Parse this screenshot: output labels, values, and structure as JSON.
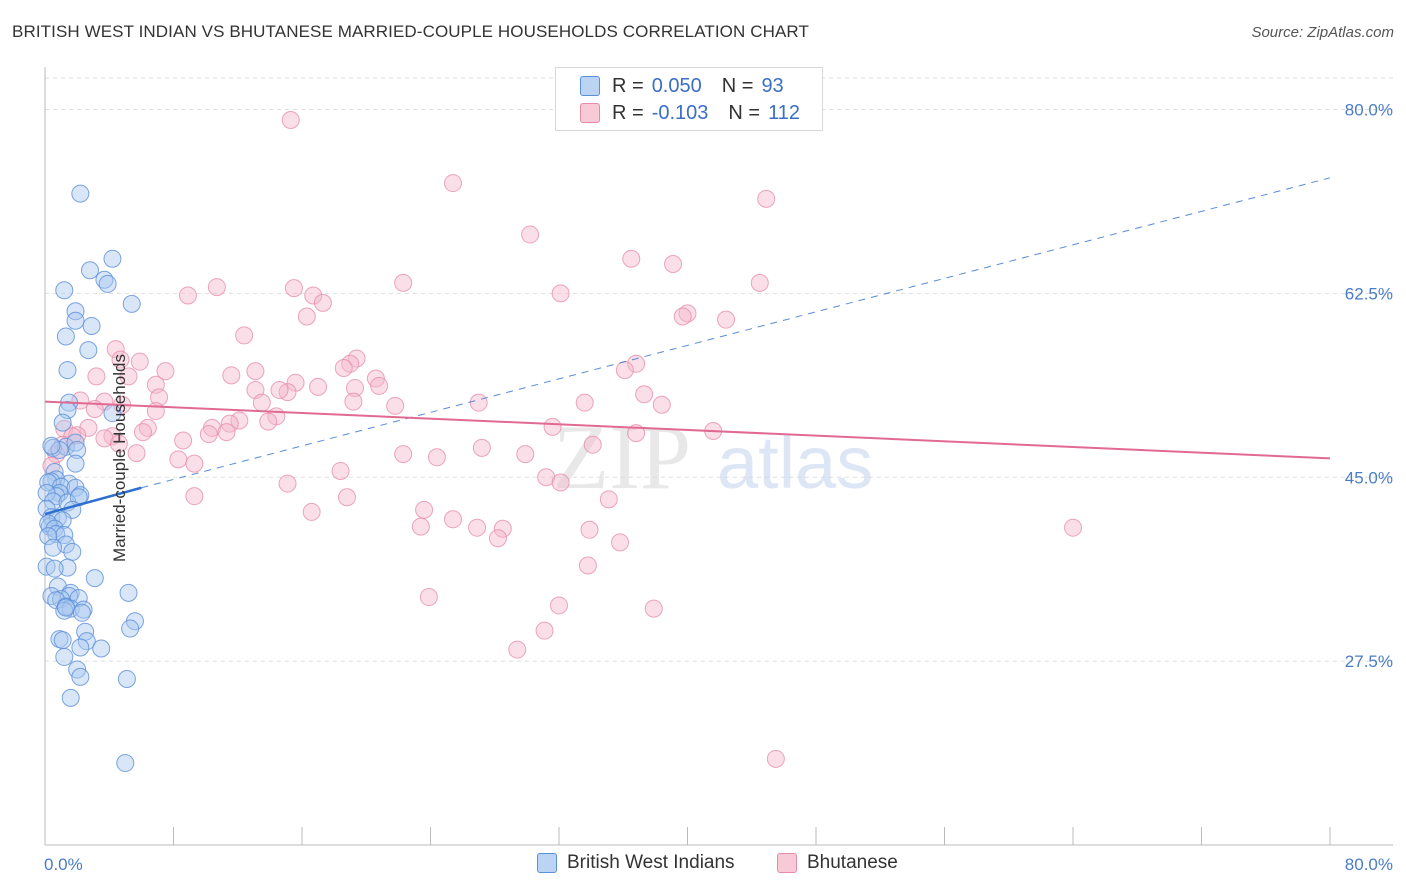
{
  "title": "BRITISH WEST INDIAN VS BHUTANESE MARRIED-COUPLE HOUSEHOLDS CORRELATION CHART",
  "source": "Source: ZipAtlas.com",
  "watermark": {
    "zip": "ZIP",
    "atlas": "atlas"
  },
  "colors": {
    "blue_fill": "#a9c7f0",
    "blue_stroke": "#5b8fd8",
    "blue_line": "#2e6fd0",
    "pink_fill": "#f5b8cb",
    "pink_stroke": "#e68aa6",
    "pink_line": "#e06a93",
    "axis_text": "#4a7cc7",
    "grid": "#dddddd"
  },
  "legend": {
    "rows": [
      {
        "r_label": "R =",
        "r_value": "0.050",
        "n_label": "N =",
        "n_value": "93"
      },
      {
        "r_label": "R =",
        "r_value": "-0.103",
        "n_label": "N =",
        "n_value": "112"
      }
    ]
  },
  "bottom_legend": {
    "series1": "British West Indians",
    "series2": "Bhutanese"
  },
  "chart_data": {
    "type": "scatter",
    "title": "BRITISH WEST INDIAN VS BHUTANESE MARRIED-COUPLE HOUSEHOLDS CORRELATION CHART",
    "xlabel": "",
    "ylabel": "Married-couple Households",
    "xlim": [
      0,
      80
    ],
    "ylim": [
      10,
      83
    ],
    "x_tick_labels": [
      "0.0%",
      "80.0%"
    ],
    "y_ticks": [
      27.5,
      45.0,
      62.5,
      80.0
    ],
    "y_tick_labels": [
      "27.5%",
      "45.0%",
      "62.5%",
      "80.0%"
    ],
    "grid": true,
    "series": [
      {
        "name": "British West Indians",
        "R": 0.05,
        "N": 93,
        "trend": {
          "x1": 0,
          "y1": 41.5,
          "x2": 6,
          "y2": 44.0,
          "dash_x2": 80,
          "dash_y2": 73.5
        },
        "points": [
          [
            2.2,
            72
          ],
          [
            4.2,
            65.8
          ],
          [
            2.8,
            64.7
          ],
          [
            3.7,
            63.8
          ],
          [
            3.9,
            63.4
          ],
          [
            1.2,
            62.8
          ],
          [
            5.4,
            61.5
          ],
          [
            1.9,
            60.8
          ],
          [
            1.9,
            59.9
          ],
          [
            2.9,
            59.4
          ],
          [
            1.3,
            58.4
          ],
          [
            2.7,
            57.1
          ],
          [
            1.4,
            55.2
          ],
          [
            1.5,
            52.1
          ],
          [
            1.4,
            51.4
          ],
          [
            4.2,
            51.1
          ],
          [
            1.1,
            50.2
          ],
          [
            0.5,
            47.8
          ],
          [
            1.3,
            47.9
          ],
          [
            0.9,
            47.6
          ],
          [
            0.4,
            48.0
          ],
          [
            1.9,
            48.3
          ],
          [
            2.0,
            47.6
          ],
          [
            1.9,
            46.3
          ],
          [
            0.6,
            45.5
          ],
          [
            0.7,
            44.8
          ],
          [
            0.4,
            44.6
          ],
          [
            0.2,
            44.5
          ],
          [
            1.5,
            44.4
          ],
          [
            1.0,
            44.1
          ],
          [
            1.9,
            44.0
          ],
          [
            0.9,
            43.5
          ],
          [
            0.7,
            43.2
          ],
          [
            0.1,
            43.5
          ],
          [
            2.2,
            43.3
          ],
          [
            0.5,
            42.7
          ],
          [
            1.4,
            42.6
          ],
          [
            2.1,
            43.1
          ],
          [
            0.1,
            42.0
          ],
          [
            1.7,
            41.9
          ],
          [
            0.4,
            41.2
          ],
          [
            0.8,
            41.1
          ],
          [
            1.1,
            40.9
          ],
          [
            0.3,
            40.3
          ],
          [
            0.2,
            40.6
          ],
          [
            0.6,
            40.1
          ],
          [
            0.7,
            39.6
          ],
          [
            1.2,
            39.5
          ],
          [
            0.2,
            39.4
          ],
          [
            1.3,
            38.6
          ],
          [
            0.5,
            38.3
          ],
          [
            1.7,
            37.9
          ],
          [
            0.1,
            36.5
          ],
          [
            1.4,
            36.4
          ],
          [
            0.6,
            36.3
          ],
          [
            3.1,
            35.4
          ],
          [
            0.8,
            34.6
          ],
          [
            1.6,
            34.0
          ],
          [
            5.2,
            34.0
          ],
          [
            1.5,
            33.7
          ],
          [
            0.4,
            33.7
          ],
          [
            1.0,
            33.4
          ],
          [
            2.1,
            33.5
          ],
          [
            0.7,
            33.3
          ],
          [
            1.3,
            32.7
          ],
          [
            1.6,
            32.5
          ],
          [
            2.4,
            32.4
          ],
          [
            1.2,
            32.3
          ],
          [
            1.3,
            32.6
          ],
          [
            2.3,
            32.1
          ],
          [
            5.6,
            31.3
          ],
          [
            5.3,
            30.6
          ],
          [
            2.5,
            30.3
          ],
          [
            0.9,
            29.6
          ],
          [
            1.1,
            29.5
          ],
          [
            2.6,
            29.4
          ],
          [
            2.2,
            28.8
          ],
          [
            3.5,
            28.7
          ],
          [
            1.2,
            27.9
          ],
          [
            2.0,
            26.7
          ],
          [
            5.1,
            25.8
          ],
          [
            2.2,
            26.0
          ],
          [
            1.6,
            24.0
          ],
          [
            5.0,
            17.8
          ]
        ]
      },
      {
        "name": "Bhutanese",
        "R": -0.103,
        "N": 112,
        "trend": {
          "x1": 0,
          "y1": 52.2,
          "x2": 80,
          "y2": 46.8
        },
        "points": [
          [
            15.3,
            79
          ],
          [
            25.4,
            73
          ],
          [
            44.9,
            71.5
          ],
          [
            30.2,
            68.1
          ],
          [
            36.5,
            65.8
          ],
          [
            39.1,
            65.3
          ],
          [
            22.3,
            63.5
          ],
          [
            44.5,
            63.5
          ],
          [
            10.7,
            63.1
          ],
          [
            15.5,
            63.0
          ],
          [
            32.1,
            62.5
          ],
          [
            8.9,
            62.3
          ],
          [
            16.7,
            62.3
          ],
          [
            17.3,
            61.6
          ],
          [
            40.0,
            60.6
          ],
          [
            42.4,
            60.0
          ],
          [
            39.7,
            60.3
          ],
          [
            16.3,
            60.3
          ],
          [
            12.4,
            58.5
          ],
          [
            4.4,
            57.2
          ],
          [
            4.7,
            56.2
          ],
          [
            5.9,
            56.0
          ],
          [
            19.4,
            56.3
          ],
          [
            19.0,
            55.8
          ],
          [
            36.8,
            55.8
          ],
          [
            18.6,
            55.4
          ],
          [
            7.5,
            55.1
          ],
          [
            36.1,
            55.2
          ],
          [
            3.2,
            54.6
          ],
          [
            5.2,
            54.6
          ],
          [
            11.6,
            54.7
          ],
          [
            13.1,
            55.1
          ],
          [
            20.6,
            54.4
          ],
          [
            15.6,
            54.0
          ],
          [
            6.9,
            53.8
          ],
          [
            17.0,
            53.6
          ],
          [
            19.3,
            53.5
          ],
          [
            13.1,
            53.3
          ],
          [
            20.8,
            53.7
          ],
          [
            15.1,
            53.1
          ],
          [
            14.6,
            53.3
          ],
          [
            37.3,
            52.9
          ],
          [
            7.1,
            52.6
          ],
          [
            19.2,
            52.2
          ],
          [
            2.2,
            52.3
          ],
          [
            3.7,
            52.2
          ],
          [
            4.8,
            51.9
          ],
          [
            13.5,
            52.1
          ],
          [
            21.8,
            51.8
          ],
          [
            33.6,
            52.1
          ],
          [
            27.0,
            52.1
          ],
          [
            38.4,
            51.9
          ],
          [
            3.1,
            51.5
          ],
          [
            6.9,
            51.3
          ],
          [
            14.4,
            50.8
          ],
          [
            12.1,
            50.4
          ],
          [
            13.9,
            50.3
          ],
          [
            11.5,
            50.1
          ],
          [
            2.7,
            49.7
          ],
          [
            6.4,
            49.7
          ],
          [
            31.6,
            49.8
          ],
          [
            6.1,
            49.3
          ],
          [
            41.6,
            49.4
          ],
          [
            10.4,
            49.7
          ],
          [
            11.3,
            49.3
          ],
          [
            1.2,
            49.6
          ],
          [
            2.0,
            49.0
          ],
          [
            4.2,
            48.9
          ],
          [
            10.2,
            49.1
          ],
          [
            8.6,
            48.5
          ],
          [
            1.7,
            48.9
          ],
          [
            3.7,
            48.7
          ],
          [
            1.1,
            48.1
          ],
          [
            36.8,
            49.2
          ],
          [
            4.6,
            48.2
          ],
          [
            34.1,
            48.1
          ],
          [
            27.2,
            47.8
          ],
          [
            5.7,
            47.3
          ],
          [
            0.7,
            47.2
          ],
          [
            22.3,
            47.2
          ],
          [
            29.9,
            47.2
          ],
          [
            24.4,
            46.9
          ],
          [
            8.3,
            46.7
          ],
          [
            9.3,
            46.3
          ],
          [
            0.4,
            46.1
          ],
          [
            18.4,
            45.6
          ],
          [
            31.2,
            45.0
          ],
          [
            32.1,
            44.5
          ],
          [
            15.1,
            44.4
          ],
          [
            9.3,
            43.2
          ],
          [
            18.8,
            43.1
          ],
          [
            35.1,
            42.9
          ],
          [
            23.6,
            41.9
          ],
          [
            16.6,
            41.7
          ],
          [
            25.4,
            41.0
          ],
          [
            23.4,
            40.3
          ],
          [
            26.9,
            40.2
          ],
          [
            28.5,
            40.1
          ],
          [
            33.9,
            40.0
          ],
          [
            64.0,
            40.2
          ],
          [
            28.2,
            39.2
          ],
          [
            35.8,
            38.8
          ],
          [
            33.8,
            36.6
          ],
          [
            23.9,
            33.6
          ],
          [
            32.0,
            32.8
          ],
          [
            37.9,
            32.5
          ],
          [
            31.1,
            30.4
          ],
          [
            29.4,
            28.6
          ],
          [
            45.5,
            18.2
          ]
        ]
      }
    ]
  }
}
